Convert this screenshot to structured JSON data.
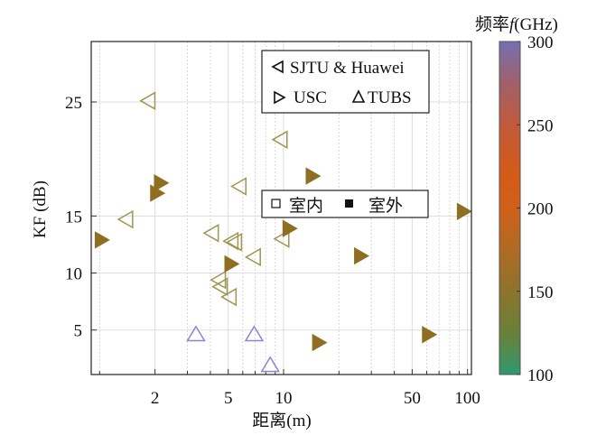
{
  "chart_data": {
    "type": "scatter",
    "title": "",
    "xlabel": "距离(m)",
    "ylabel": "KF (dB)",
    "xscale": "log",
    "xlim": [
      0.9,
      105
    ],
    "ylim": [
      1.1,
      30.3
    ],
    "xticks": [
      2,
      5,
      10,
      50,
      100
    ],
    "xtick_labels": [
      "2",
      "5",
      "10",
      "50",
      "100"
    ],
    "xminor_ticks": [
      1,
      3,
      4,
      6,
      7,
      8,
      9,
      20,
      30,
      40,
      60,
      70,
      80,
      90
    ],
    "yticks": [
      5,
      10,
      15,
      25
    ],
    "ytick_labels": [
      "5",
      "10",
      "15",
      "25"
    ],
    "grid": true,
    "colorbar": {
      "label": "频率",
      "label_symbol": "f",
      "label_unit": "(GHz)",
      "range": [
        100,
        300
      ],
      "ticks": [
        100,
        150,
        200,
        250,
        300
      ],
      "tick_labels": [
        "100",
        "150",
        "200",
        "250",
        "300"
      ],
      "stops": [
        {
          "value": 100,
          "color": "#2E9A6E"
        },
        {
          "value": 125,
          "color": "#6A8038"
        },
        {
          "value": 150,
          "color": "#8C742C"
        },
        {
          "value": 175,
          "color": "#B06A24"
        },
        {
          "value": 200,
          "color": "#D0601A"
        },
        {
          "value": 220,
          "color": "#D45A18"
        },
        {
          "value": 250,
          "color": "#C25A3A"
        },
        {
          "value": 275,
          "color": "#A0606A"
        },
        {
          "value": 300,
          "color": "#7470B0"
        }
      ]
    },
    "legend_source": {
      "placement": "top-right",
      "entries": [
        {
          "marker": "triangle-left",
          "label": "SJTU & Huawei"
        },
        {
          "marker": "triangle-right",
          "label": "USC"
        },
        {
          "marker": "triangle-up",
          "label": "TUBS"
        }
      ]
    },
    "legend_scenario": {
      "placement": "center-right",
      "entries": [
        {
          "marker": "square-hollow",
          "label": "室内"
        },
        {
          "marker": "square-filled",
          "label": "室外"
        }
      ]
    },
    "series": [
      {
        "name": "SJTU & Huawei",
        "marker": "triangle-left",
        "scenario": "室内",
        "frequency_ghz": 140,
        "color": "#9E9652",
        "points": [
          {
            "x": 1.85,
            "y": 25.1
          },
          {
            "x": 1.4,
            "y": 14.7
          },
          {
            "x": 5.78,
            "y": 17.6
          },
          {
            "x": 9.67,
            "y": 21.7
          },
          {
            "x": 4.09,
            "y": 13.5
          },
          {
            "x": 5.23,
            "y": 12.8
          },
          {
            "x": 5.47,
            "y": 12.7
          },
          {
            "x": 6.92,
            "y": 11.4
          },
          {
            "x": 9.89,
            "y": 13.0
          },
          {
            "x": 4.47,
            "y": 9.4
          },
          {
            "x": 4.57,
            "y": 8.8
          },
          {
            "x": 5.11,
            "y": 7.9
          }
        ]
      },
      {
        "name": "USC",
        "marker": "triangle-right",
        "scenario": "室外",
        "frequency_ghz": 142,
        "color": "#8E6F22",
        "points": [
          {
            "x": 1.02,
            "y": 12.9
          },
          {
            "x": 2.14,
            "y": 17.9
          },
          {
            "x": 2.04,
            "y": 17.0
          },
          {
            "x": 14.3,
            "y": 18.5
          },
          {
            "x": 10.7,
            "y": 13.9
          },
          {
            "x": 5.17,
            "y": 10.8
          },
          {
            "x": 26.2,
            "y": 11.5
          },
          {
            "x": 15.5,
            "y": 3.9
          },
          {
            "x": 61.3,
            "y": 4.6
          },
          {
            "x": 94.9,
            "y": 15.4
          }
        ]
      },
      {
        "name": "TUBS",
        "marker": "triangle-up",
        "scenario": "室内",
        "frequency_ghz": 300,
        "color": "#8A86CC",
        "points": [
          {
            "x": 3.34,
            "y": 4.6
          },
          {
            "x": 6.92,
            "y": 4.6
          },
          {
            "x": 8.46,
            "y": 1.9
          }
        ]
      }
    ]
  }
}
